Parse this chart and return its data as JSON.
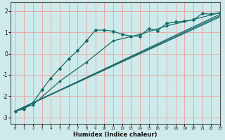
{
  "xlabel": "Humidex (Indice chaleur)",
  "xlim": [
    -0.5,
    23
  ],
  "ylim": [
    -3.3,
    2.4
  ],
  "yticks": [
    -3,
    -2,
    -1,
    0,
    1,
    2
  ],
  "xticks": [
    0,
    1,
    2,
    3,
    4,
    5,
    6,
    7,
    8,
    9,
    10,
    11,
    12,
    13,
    14,
    15,
    16,
    17,
    18,
    19,
    20,
    21,
    22,
    23
  ],
  "bg_color": "#ceeaea",
  "grid_color": "#e8aaaa",
  "line_color": "#1a6b6b",
  "line1_x": [
    0,
    1,
    2,
    3,
    4,
    5,
    6,
    7,
    8,
    9,
    10,
    11,
    12,
    13,
    14,
    15,
    16,
    17,
    18,
    19,
    20,
    21,
    22,
    23
  ],
  "line1_y": [
    -2.7,
    -2.6,
    -2.3,
    -1.7,
    -1.15,
    -0.7,
    -0.25,
    0.15,
    0.6,
    1.1,
    1.1,
    1.05,
    0.9,
    0.82,
    0.82,
    1.18,
    1.08,
    1.42,
    1.48,
    1.52,
    1.58,
    1.88,
    1.85,
    1.92
  ],
  "line2_x": [
    0,
    2,
    5,
    8,
    11,
    14,
    17,
    20,
    23
  ],
  "line2_y": [
    -2.7,
    -2.4,
    -1.3,
    -0.4,
    0.6,
    0.9,
    1.3,
    1.6,
    1.92
  ],
  "line3_x": [
    0,
    23
  ],
  "line3_y": [
    -2.7,
    1.85
  ],
  "line4_x": [
    0,
    23
  ],
  "line4_y": [
    -2.7,
    1.78
  ],
  "line5_x": [
    0,
    23
  ],
  "line5_y": [
    -2.7,
    1.72
  ]
}
